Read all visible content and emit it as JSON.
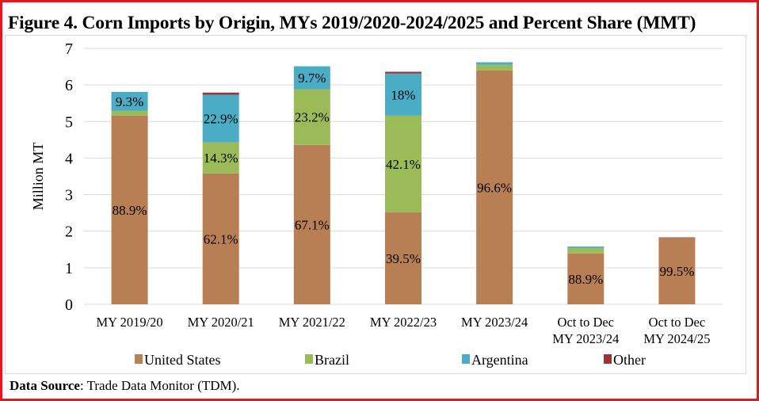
{
  "title": "Figure 4. Corn Imports by Origin, MYs 2019/2020-2024/2025 and Percent Share (MMT)",
  "source": {
    "label": "Data Source",
    "text": ": Trade Data Monitor (TDM)."
  },
  "chart_data": {
    "type": "bar",
    "stacked": true,
    "title": "Figure 4. Corn Imports by Origin, MYs 2019/2020-2024/2025 and Percent Share (MMT)",
    "xlabel": "",
    "ylabel": "Million MT",
    "ylim": [
      0,
      7
    ],
    "yticks": [
      0,
      1,
      2,
      3,
      4,
      5,
      6,
      7
    ],
    "grid": true,
    "legend_position": "bottom",
    "categories": [
      [
        "MY 2019/20"
      ],
      [
        "MY 2020/21"
      ],
      [
        "MY 2021/22"
      ],
      [
        "MY 2022/23"
      ],
      [
        "MY 2023/24"
      ],
      [
        "Oct to Dec",
        "MY 2023/24"
      ],
      [
        "Oct to Dec",
        "MY 2024/25"
      ]
    ],
    "series": [
      {
        "name": "United States",
        "color": "#b87f55",
        "values": [
          5.16,
          3.58,
          4.36,
          2.52,
          6.4,
          1.39,
          1.82
        ],
        "labels": [
          "88.9%",
          "62.1%",
          "67.1%",
          "39.5%",
          "96.6%",
          "88.9%",
          "99.5%"
        ]
      },
      {
        "name": "Brazil",
        "color": "#9bbb59",
        "values": [
          0.13,
          0.85,
          1.52,
          2.64,
          0.15,
          0.15,
          0.0
        ],
        "labels": [
          "",
          "14.3%",
          "23.2%",
          "42.1%",
          "",
          "",
          ""
        ]
      },
      {
        "name": "Argentina",
        "color": "#4bacc6",
        "values": [
          0.52,
          1.3,
          0.63,
          1.15,
          0.07,
          0.04,
          0.0
        ],
        "labels": [
          "9.3%",
          "22.9%",
          "9.7%",
          "18%",
          "",
          "",
          ""
        ]
      },
      {
        "name": "Other",
        "color": "#9b3438",
        "values": [
          0.0,
          0.06,
          0.0,
          0.05,
          0.0,
          0.0,
          0.01
        ],
        "labels": [
          "",
          "",
          "",
          "",
          "",
          "",
          ""
        ]
      }
    ]
  }
}
